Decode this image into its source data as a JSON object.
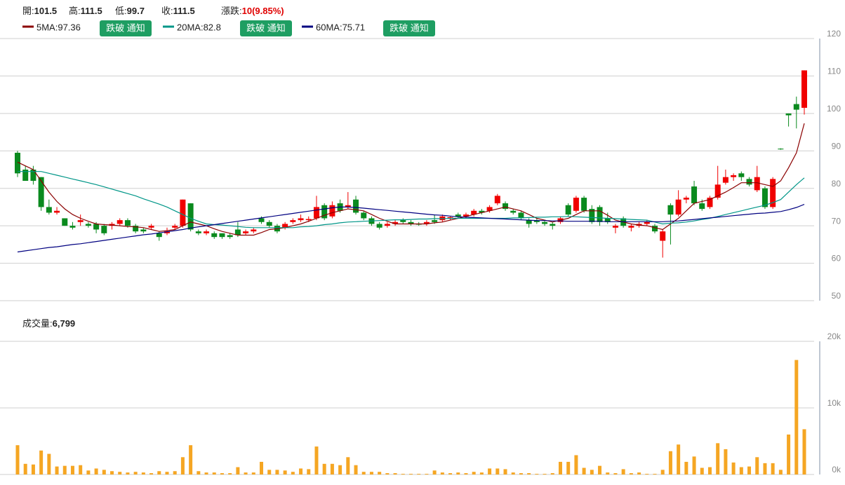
{
  "header": {
    "items": [
      {
        "label": "開:",
        "value": "101.5"
      },
      {
        "label": "高:",
        "value": "111.5"
      },
      {
        "label": "低:",
        "value": "99.7"
      },
      {
        "label": "收:",
        "value": "111.5"
      },
      {
        "label": "漲跌:",
        "value": "10(9.85%)",
        "color": "#e00000"
      }
    ]
  },
  "chart_data": [
    {
      "type": "candlestick",
      "up_color": "#f00000",
      "down_color": "#0a8a1e",
      "ylim": [
        50,
        120
      ],
      "yticks": [
        50,
        60,
        70,
        80,
        90,
        100,
        110,
        120
      ],
      "grid": true,
      "open": [
        89.5,
        85,
        85,
        83,
        75,
        73.5,
        72,
        70,
        71,
        70.5,
        70.5,
        70,
        70,
        70.5,
        71.5,
        70,
        69,
        69.5,
        68,
        68,
        69.5,
        70,
        76,
        68.5,
        68,
        68,
        68,
        67.5,
        69,
        68,
        68.5,
        72,
        71,
        70,
        69.5,
        71,
        71.5,
        71.5,
        72,
        75.5,
        72.5,
        76,
        75,
        77,
        73.5,
        72,
        70.5,
        70,
        70.5,
        71.5,
        71,
        70.5,
        70.5,
        71.5,
        71.5,
        72,
        73,
        72.5,
        73,
        74,
        74,
        76,
        76,
        74,
        73.5,
        71.5,
        71.5,
        71,
        70.5,
        71,
        75.5,
        74,
        77.5,
        74.5,
        75,
        72,
        69.5,
        72,
        69.5,
        70,
        70.5,
        70,
        66,
        75.5,
        73,
        77,
        80.5,
        76,
        75,
        77.5,
        81.5,
        83,
        84,
        82.5,
        79.5,
        80,
        75,
        90.6,
        100,
        102.5,
        101.5
      ],
      "close": [
        84,
        82,
        82,
        75,
        73.5,
        74,
        70,
        69.5,
        71.5,
        70,
        69,
        68,
        70.5,
        71.5,
        70,
        68.5,
        68.5,
        70,
        67,
        68.5,
        70,
        77,
        69,
        68,
        68.5,
        67,
        67,
        67,
        67.5,
        68.5,
        69,
        71,
        70,
        68.5,
        70.5,
        71.5,
        72,
        71.8,
        75,
        72,
        75.5,
        74,
        75.5,
        73.5,
        72,
        70.5,
        69.5,
        70.5,
        71,
        71,
        70.5,
        70.3,
        71,
        71,
        72.5,
        72.3,
        72.5,
        73,
        74,
        73.5,
        75,
        78,
        74.5,
        73.5,
        72,
        70.5,
        71,
        70.5,
        70,
        72,
        73,
        77.5,
        74,
        71,
        71,
        71,
        70,
        70,
        70,
        70.5,
        71,
        68.5,
        68.5,
        73,
        77,
        77.5,
        76,
        74.5,
        77.5,
        81,
        83,
        83.5,
        83,
        81,
        83,
        75,
        82.5,
        90.4,
        99.5,
        101,
        111.5
      ],
      "high": [
        90,
        86,
        86,
        83,
        77,
        75,
        72,
        71,
        73,
        71,
        71,
        70.5,
        71,
        72,
        72,
        70.5,
        69.5,
        70.5,
        68.5,
        69.5,
        70.5,
        77,
        76,
        69,
        69,
        68.5,
        68,
        68,
        71,
        69,
        69.5,
        72.5,
        71.5,
        70.5,
        71,
        72,
        73,
        72.5,
        78,
        76,
        76.5,
        77,
        79,
        78,
        74,
        72.5,
        71,
        71,
        71.5,
        72,
        71.5,
        71,
        71.5,
        73,
        73,
        72.5,
        73.5,
        73.5,
        74.5,
        74.5,
        75.5,
        78.5,
        76.5,
        74.5,
        74,
        72,
        72,
        71.5,
        71,
        72.5,
        76,
        78,
        78,
        75.5,
        75.5,
        73.5,
        70.5,
        72.5,
        70.5,
        71,
        71.5,
        70.5,
        69,
        76,
        79.5,
        78,
        82,
        77,
        78,
        86,
        85,
        84,
        84.5,
        83,
        86,
        80.5,
        83,
        90.7,
        100,
        104.5,
        111.5
      ],
      "low": [
        83,
        82,
        81,
        74,
        73,
        73,
        70,
        69,
        70,
        69.5,
        68,
        67.5,
        69,
        70,
        69.5,
        68,
        68,
        69,
        66,
        67.5,
        69,
        69.5,
        68.5,
        67.5,
        67.5,
        66.5,
        66.5,
        66.5,
        67,
        67.5,
        68,
        70.5,
        69.5,
        68,
        69,
        70.5,
        71,
        71,
        71.5,
        71.5,
        72,
        73.5,
        74.5,
        73,
        71.5,
        70,
        69,
        69.5,
        70,
        70.5,
        70,
        70,
        70,
        70.5,
        71,
        71.5,
        72,
        72,
        72.5,
        73,
        73.5,
        75.5,
        74,
        73,
        71.5,
        69.5,
        70.5,
        70,
        69,
        70.5,
        72.5,
        73.5,
        73.5,
        70.5,
        70,
        70.5,
        68,
        69.5,
        68.5,
        69.5,
        70,
        68,
        61.5,
        65,
        72.5,
        76,
        75.5,
        74,
        74.5,
        77,
        81,
        82,
        82,
        80.5,
        79,
        74.5,
        74.5,
        90.3,
        96.5,
        96,
        99.7
      ],
      "series": [
        {
          "name": "5MA:97.36",
          "button": "跌破 通知",
          "color": "#8b0000",
          "values": [
            87,
            86,
            85,
            82,
            79,
            76.5,
            74.5,
            73,
            72,
            71.2,
            70.5,
            70.3,
            70.2,
            70,
            69.8,
            69.7,
            69.5,
            69,
            68.5,
            68.7,
            69,
            70,
            71,
            70.5,
            70,
            69.2,
            68.5,
            68,
            67.5,
            67.5,
            67.5,
            68.2,
            69,
            69.2,
            69.5,
            70,
            70.5,
            71.2,
            72,
            72.8,
            73.5,
            74,
            74.5,
            74.3,
            74,
            73,
            72,
            71.2,
            70.5,
            70.5,
            70.5,
            70.5,
            70.5,
            70.8,
            71,
            71.5,
            72,
            72.5,
            73,
            73.5,
            74,
            74.5,
            75,
            74.5,
            74,
            73,
            72,
            71.5,
            71,
            71.5,
            72,
            73,
            74,
            74,
            74,
            72.8,
            71.5,
            71,
            70.5,
            70.2,
            70,
            69.5,
            69,
            70.5,
            72,
            74,
            76,
            76.5,
            77,
            78,
            79,
            80.2,
            81.5,
            81.5,
            81.5,
            81,
            80.5,
            82,
            85.5,
            89.5,
            97.36
          ]
        },
        {
          "name": "20MA:82.8",
          "button": "跌破 通知",
          "color": "#009688",
          "values": [
            84.5,
            84.5,
            84.5,
            84.5,
            84,
            83.5,
            83,
            82.5,
            82,
            81.5,
            81,
            80.4,
            79.8,
            79.2,
            78.6,
            78,
            77.2,
            76.5,
            75.8,
            75,
            74,
            73,
            72,
            71.2,
            70.5,
            70.3,
            70.2,
            70,
            69.8,
            69.6,
            69.5,
            69.5,
            69.5,
            69.5,
            69.5,
            69.5,
            69.7,
            69.8,
            70,
            70.3,
            70.5,
            70.8,
            71,
            71.1,
            71.2,
            71.3,
            71.4,
            71.5,
            71.6,
            71.6,
            71.7,
            71.8,
            71.8,
            71.9,
            71.9,
            72,
            72,
            72,
            72,
            72,
            72,
            72,
            72,
            72.1,
            72.1,
            72.2,
            72.3,
            72.3,
            72.4,
            72.4,
            72.5,
            72.4,
            72.3,
            72.2,
            72.1,
            72,
            71.9,
            71.8,
            71.7,
            71.6,
            71.5,
            71,
            70.5,
            70.7,
            70.8,
            71,
            71.3,
            71.7,
            72,
            72.5,
            73,
            73.5,
            74,
            74.5,
            75,
            75.5,
            76.2,
            77,
            79,
            81,
            82.8
          ]
        },
        {
          "name": "60MA:75.71",
          "button": "跌破 通知",
          "color": "#000080",
          "values": [
            63,
            63.3,
            63.6,
            63.9,
            64.2,
            64.4,
            64.7,
            65,
            65.2,
            65.5,
            65.8,
            66.1,
            66.4,
            66.7,
            67,
            67.3,
            67.6,
            67.8,
            68.1,
            68.4,
            68.7,
            69,
            69.4,
            69.7,
            70,
            70.3,
            70.6,
            70.9,
            71.2,
            71.5,
            71.8,
            72.1,
            72.4,
            72.7,
            73,
            73.3,
            73.6,
            73.9,
            74.2,
            74.5,
            74.8,
            75,
            75,
            74.9,
            74.7,
            74.5,
            74.3,
            74.1,
            73.9,
            73.7,
            73.5,
            73.3,
            73.1,
            72.9,
            72.8,
            72.6,
            72.4,
            72.3,
            72.2,
            72.1,
            72,
            71.9,
            71.8,
            71.7,
            71.6,
            71.5,
            71.4,
            71.4,
            71.3,
            71.3,
            71.2,
            71.2,
            71.2,
            71.2,
            71.2,
            71.1,
            71.1,
            71.1,
            71.1,
            71.1,
            71.1,
            71.1,
            71.1,
            71.2,
            71.3,
            71.5,
            71.7,
            71.9,
            72.1,
            72.3,
            72.5,
            72.7,
            72.9,
            73.1,
            73.3,
            73.4,
            73.6,
            73.8,
            74.3,
            74.9,
            75.71
          ]
        }
      ]
    },
    {
      "type": "bar",
      "title": "成交量:",
      "last_label": "6,799",
      "color": "#f5a623",
      "ylim": [
        0,
        20000
      ],
      "grid": true,
      "yticks": [
        {
          "value": 0,
          "label": "0k"
        },
        {
          "value": 10000,
          "label": "10k"
        },
        {
          "value": 20000,
          "label": "20k"
        }
      ],
      "values": [
        4400,
        1600,
        1500,
        3600,
        3100,
        1200,
        1300,
        1300,
        1400,
        600,
        900,
        700,
        500,
        400,
        300,
        400,
        300,
        200,
        500,
        400,
        500,
        2600,
        4400,
        500,
        300,
        300,
        200,
        200,
        1100,
        300,
        300,
        1900,
        700,
        700,
        600,
        400,
        900,
        800,
        4200,
        1600,
        1600,
        1400,
        2600,
        1400,
        400,
        400,
        400,
        200,
        200,
        100,
        100,
        100,
        100,
        600,
        300,
        200,
        300,
        200,
        400,
        300,
        900,
        900,
        800,
        300,
        200,
        200,
        100,
        100,
        200,
        1900,
        1900,
        2900,
        1000,
        700,
        1300,
        300,
        200,
        800,
        200,
        300,
        100,
        100,
        700,
        3500,
        4500,
        1900,
        2700,
        1000,
        1100,
        4700,
        3800,
        1800,
        1100,
        1200,
        2600,
        1700,
        1700,
        700,
        6000,
        17200,
        6799
      ]
    }
  ]
}
